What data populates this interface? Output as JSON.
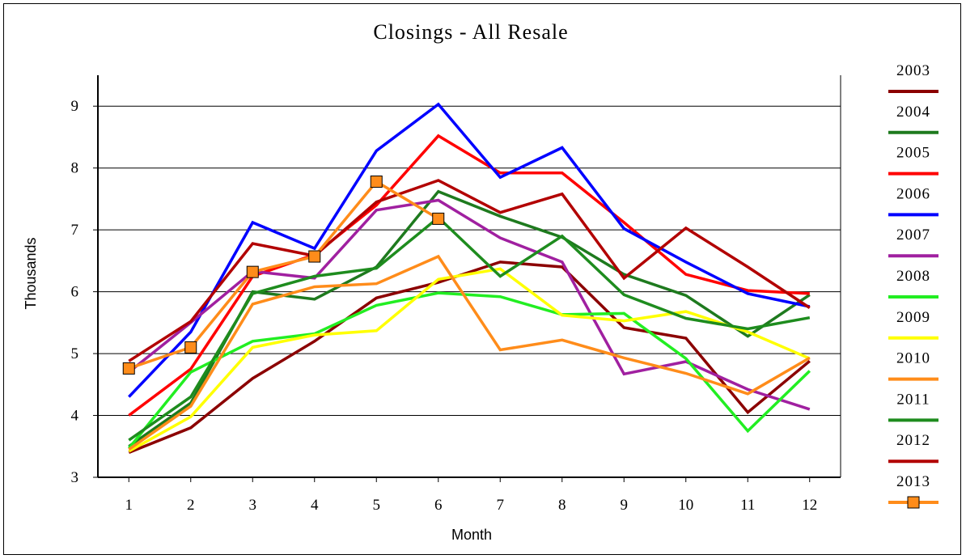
{
  "chart_data": {
    "type": "line",
    "title": "Closings - All Resale",
    "xlabel": "Month",
    "ylabel": "Thousands",
    "ylim": [
      3,
      9.5
    ],
    "yticks": [
      3,
      4,
      5,
      6,
      7,
      8,
      9
    ],
    "categories": [
      "1",
      "2",
      "3",
      "4",
      "5",
      "6",
      "7",
      "8",
      "9",
      "10",
      "11",
      "12"
    ],
    "grid": "horizontal",
    "legend": "right",
    "series": [
      {
        "name": "2003",
        "color": "#8b0000",
        "values": [
          3.4,
          3.8,
          4.6,
          5.2,
          5.9,
          6.15,
          6.48,
          6.4,
          5.42,
          5.25,
          4.05,
          4.88
        ]
      },
      {
        "name": "2004",
        "color": "#1e7a1e",
        "values": [
          3.5,
          4.2,
          6.0,
          5.88,
          6.4,
          7.62,
          7.22,
          6.88,
          6.28,
          5.94,
          5.28,
          5.95
        ]
      },
      {
        "name": "2005",
        "color": "#ff0000",
        "values": [
          4.0,
          4.75,
          6.25,
          6.6,
          7.4,
          8.52,
          7.92,
          7.92,
          7.12,
          6.28,
          6.02,
          5.97
        ]
      },
      {
        "name": "2006",
        "color": "#0000ff",
        "values": [
          4.3,
          5.35,
          7.12,
          6.7,
          8.28,
          9.03,
          7.85,
          8.33,
          7.02,
          6.48,
          5.97,
          5.76
        ]
      },
      {
        "name": "2007",
        "color": "#a020a0",
        "values": [
          4.7,
          5.5,
          6.33,
          6.22,
          7.32,
          7.48,
          6.87,
          6.48,
          4.67,
          4.87,
          4.42,
          4.1
        ]
      },
      {
        "name": "2008",
        "color": "#22ee22",
        "values": [
          3.47,
          4.7,
          5.2,
          5.32,
          5.78,
          5.98,
          5.92,
          5.63,
          5.65,
          4.92,
          3.75,
          4.72
        ]
      },
      {
        "name": "2009",
        "color": "#ffff00",
        "values": [
          3.42,
          3.98,
          5.1,
          5.3,
          5.37,
          6.2,
          6.37,
          5.62,
          5.53,
          5.68,
          5.35,
          4.92
        ]
      },
      {
        "name": "2010",
        "color": "#ff8c1a",
        "values": [
          3.45,
          4.15,
          5.8,
          6.08,
          6.13,
          6.57,
          5.06,
          5.22,
          4.93,
          4.68,
          4.35,
          4.93
        ]
      },
      {
        "name": "2011",
        "color": "#1e8c1e",
        "values": [
          3.6,
          4.3,
          5.97,
          6.25,
          6.38,
          7.2,
          6.25,
          6.9,
          5.95,
          5.57,
          5.4,
          5.58
        ]
      },
      {
        "name": "2012",
        "color": "#b20000",
        "values": [
          4.88,
          5.52,
          6.78,
          6.58,
          7.45,
          7.8,
          7.28,
          7.58,
          6.22,
          7.03,
          6.4,
          5.74
        ]
      },
      {
        "name": "2013",
        "color": "#ff8c1a",
        "marker": "square",
        "values": [
          4.76,
          5.1,
          6.32,
          6.57,
          7.78,
          7.18,
          null,
          null,
          null,
          null,
          null,
          null
        ]
      }
    ]
  }
}
